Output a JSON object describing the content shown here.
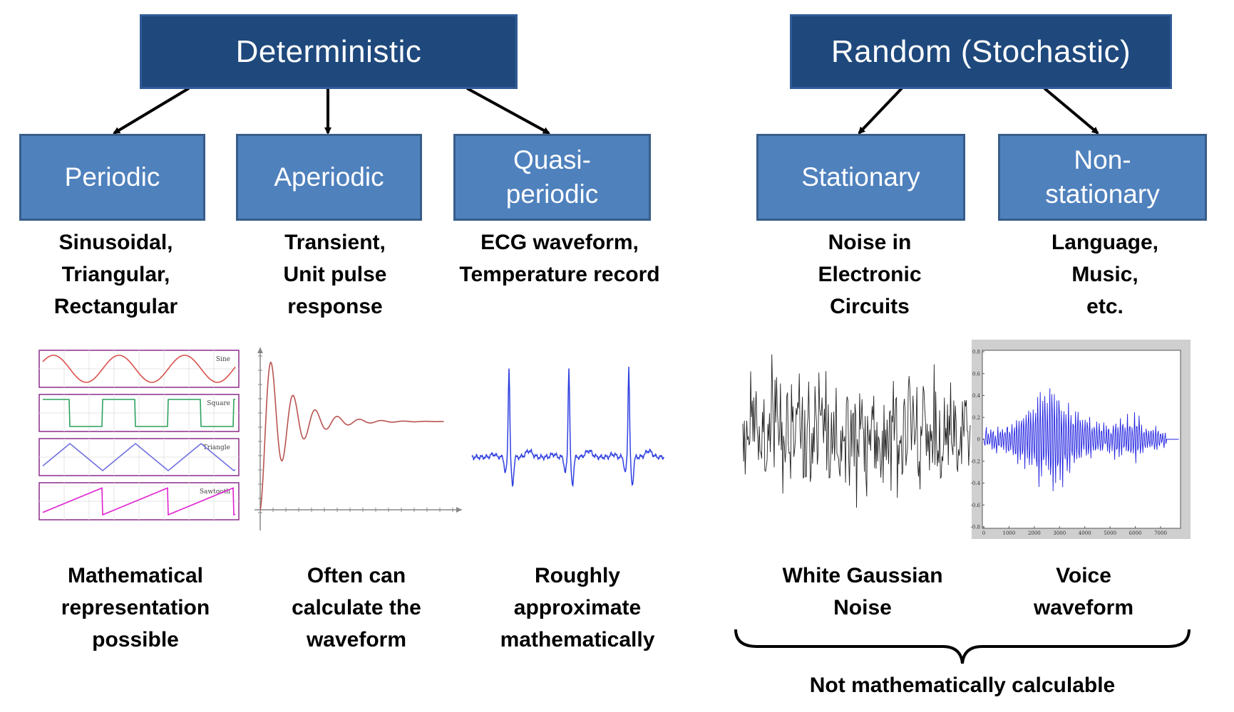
{
  "deterministic": {
    "title": "Deterministic",
    "children": [
      {
        "label": "Periodic",
        "examples": "Sinusoidal,\nTriangular,\nRectangular",
        "note": "Mathematical\nrepresentation\npossible"
      },
      {
        "label": "Aperiodic",
        "examples": "Transient,\nUnit pulse\nresponse",
        "note": "Often can\ncalculate the\nwaveform"
      },
      {
        "label": "Quasi-\nperiodic",
        "examples": "ECG waveform,\nTemperature record",
        "note": "Roughly\napproximate\nmathematically"
      }
    ]
  },
  "random": {
    "title": "Random (Stochastic)",
    "children": [
      {
        "label": "Stationary",
        "examples": "Noise in\nElectronic\nCircuits",
        "note": "White Gaussian\nNoise"
      },
      {
        "label": "Non-\nstationary",
        "examples": "Language,\nMusic,\netc.",
        "note": "Voice\nwaveform"
      }
    ],
    "footer": "Not mathematically calculable"
  },
  "waveforms": {
    "periodic_panels": [
      "Sine",
      "Square",
      "Triangle",
      "Sawtooth"
    ],
    "voice_y_ticks": [
      "0.8",
      "0.6",
      "0.4",
      "0.2",
      "0",
      "-0.2",
      "-0.4",
      "-0.6",
      "-0.8"
    ],
    "voice_x_ticks": [
      "0",
      "1000",
      "2000",
      "3000",
      "4000",
      "5000",
      "6000",
      "7000"
    ]
  },
  "colors": {
    "top_box": "#1f497d",
    "sub_box": "#4f81bd",
    "sine": "#d9534f",
    "square": "#2ca25f",
    "triangle": "#6f6fe0",
    "sawtooth": "#e020d0",
    "damped": "#b85450",
    "ecg": "#3040e0",
    "noise": "#222222",
    "voice": "#2020e0"
  }
}
